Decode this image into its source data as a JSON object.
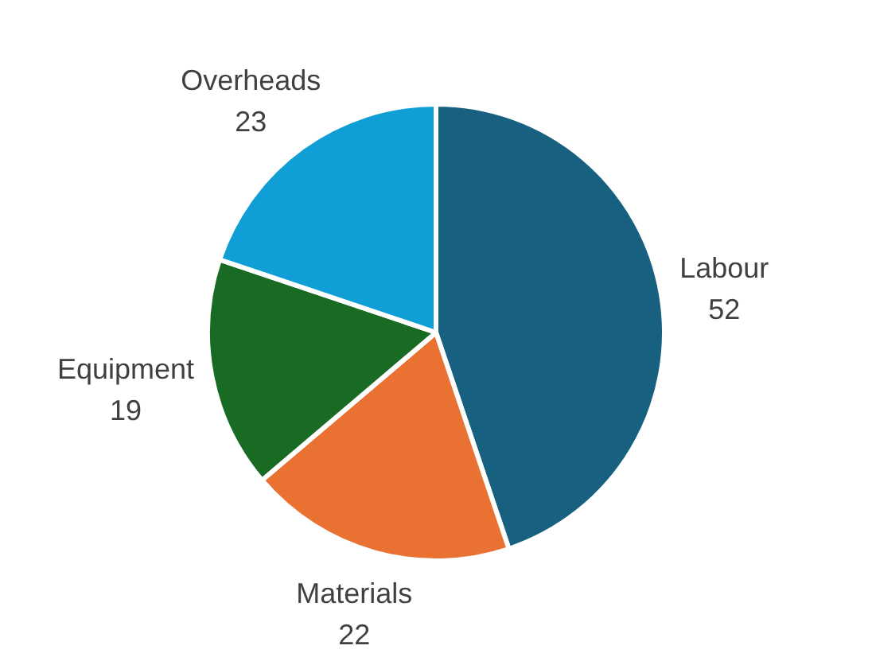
{
  "chart_data": {
    "type": "pie",
    "categories": [
      "Labour",
      "Materials",
      "Equipment",
      "Overheads"
    ],
    "values": [
      52,
      22,
      19,
      23
    ],
    "colors": [
      "#17607f",
      "#e97132",
      "#196b24",
      "#0f9ed5"
    ],
    "data_labels": true,
    "legend": false
  }
}
